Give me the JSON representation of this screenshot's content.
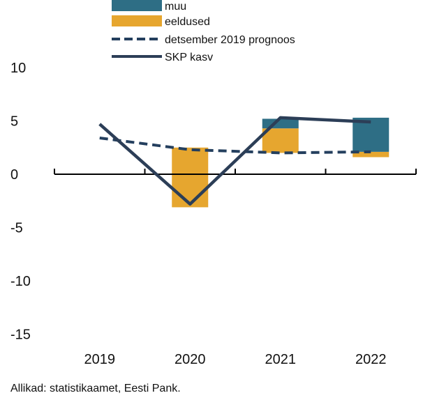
{
  "chart_data": {
    "type": "bar",
    "categories": [
      "2019",
      "2020",
      "2021",
      "2022"
    ],
    "ylim": [
      -15,
      10
    ],
    "yticks": [
      10,
      5,
      0,
      -5,
      -10,
      -15
    ],
    "grid": false,
    "legend_position": "top",
    "stacked_series": [
      {
        "name": "eeldused",
        "color": "#E6A62F",
        "segments": [
          null,
          [
            -3.1,
            2.5
          ],
          [
            2.0,
            4.3
          ],
          [
            1.6,
            2.1
          ]
        ]
      },
      {
        "name": "muu",
        "color": "#2E6E85",
        "segments": [
          null,
          null,
          [
            4.3,
            5.2
          ],
          [
            2.1,
            5.3
          ]
        ]
      }
    ],
    "line_series": [
      {
        "name": "detsember 2019 prognoos",
        "color": "#243F5E",
        "dashed": true,
        "values": [
          3.4,
          2.3,
          2.0,
          2.1
        ]
      },
      {
        "name": "SKP kasv",
        "color": "#2C3E57",
        "dashed": false,
        "values": [
          4.7,
          -2.8,
          5.3,
          4.9
        ]
      }
    ],
    "legend": [
      {
        "label": "muu",
        "kind": "box",
        "color": "#2E6E85"
      },
      {
        "label": "eeldused",
        "kind": "box",
        "color": "#E6A62F"
      },
      {
        "label": "detsember 2019 prognoos",
        "kind": "dash",
        "color": "#243F5E"
      },
      {
        "label": "SKP kasv",
        "kind": "line",
        "color": "#2C3E57"
      }
    ]
  },
  "source_note": "Allikad: statistikaamet, Eesti Pank."
}
